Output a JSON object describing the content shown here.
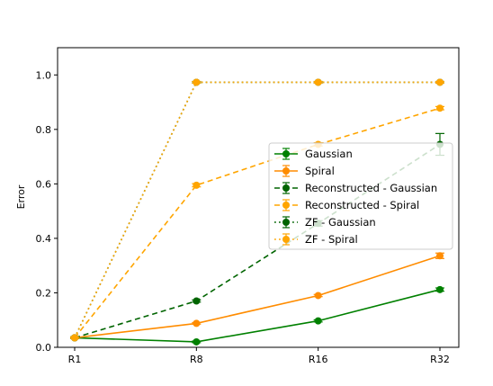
{
  "chart_data": {
    "type": "line",
    "title": "",
    "xlabel": "",
    "ylabel": "Error",
    "categories": [
      "R1",
      "R8",
      "R16",
      "R32"
    ],
    "ylim": [
      0.0,
      1.1
    ],
    "yticks": [
      "0.0",
      "0.2",
      "0.4",
      "0.6",
      "0.8",
      "1.0"
    ],
    "grid": false,
    "legend_position": "center-right",
    "series": [
      {
        "name": "Gaussian",
        "color": "#008000",
        "linestyle": "solid",
        "marker": "circle",
        "values": [
          0.035,
          0.02,
          0.097,
          0.212
        ],
        "errors": [
          0.003,
          0.003,
          0.004,
          0.006
        ]
      },
      {
        "name": "Spiral",
        "color": "#ff8c00",
        "linestyle": "solid",
        "marker": "circle",
        "values": [
          0.035,
          0.088,
          0.19,
          0.336
        ],
        "errors": [
          0.003,
          0.003,
          0.004,
          0.01
        ]
      },
      {
        "name": "Reconstructed - Gaussian",
        "color": "#006400",
        "linestyle": "dashed",
        "marker": "circle",
        "values": [
          0.035,
          0.17,
          0.455,
          0.745
        ],
        "errors": [
          0.003,
          0.004,
          0.01,
          0.04
        ]
      },
      {
        "name": "Reconstructed - Spiral",
        "color": "#ffa500",
        "linestyle": "dashed",
        "marker": "circle",
        "values": [
          0.035,
          0.595,
          0.745,
          0.878
        ],
        "errors": [
          0.003,
          0.006,
          0.006,
          0.006
        ]
      },
      {
        "name": "ZF - Gaussian",
        "color": "#006400",
        "linestyle": "dotted",
        "marker": "circle",
        "values": [
          0.035,
          0.973,
          0.973,
          0.973
        ],
        "errors": [
          0.003,
          0.003,
          0.003,
          0.003
        ]
      },
      {
        "name": "ZF - Spiral",
        "color": "#ffa500",
        "linestyle": "dotted",
        "marker": "circle",
        "values": [
          0.035,
          0.973,
          0.973,
          0.973
        ],
        "errors": [
          0.003,
          0.003,
          0.003,
          0.003
        ]
      }
    ]
  }
}
